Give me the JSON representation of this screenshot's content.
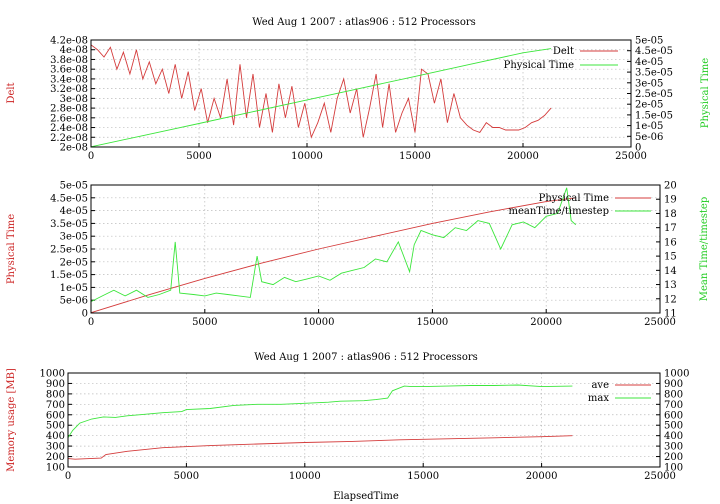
{
  "chart_data": [
    {
      "type": "line",
      "title": "Wed Aug 1 2007 : atlas906 : 512 Processors",
      "xlabel": "",
      "ylabel": "Delt",
      "y2label": "Physical Time",
      "xlim": [
        0,
        25000
      ],
      "ylim": [
        2e-08,
        4.2e-08
      ],
      "y2lim": [
        0,
        5e-05
      ],
      "xticks": [
        "0",
        "5000",
        "10000",
        "15000",
        "20000",
        "25000"
      ],
      "yticks": [
        "2e-08",
        "2.2e-08",
        "2.4e-08",
        "2.6e-08",
        "2.8e-08",
        "3e-08",
        "3.2e-08",
        "3.4e-08",
        "3.6e-08",
        "3.8e-08",
        "4e-08",
        "4.2e-08"
      ],
      "y2ticks": [
        "0",
        "5e-06",
        "1e-05",
        "1.5e-05",
        "2e-05",
        "2.5e-05",
        "3e-05",
        "3.5e-05",
        "4e-05",
        "4.5e-05",
        "5e-05"
      ],
      "grid": true,
      "legend_position": "top-right",
      "colors": {
        "red": "#d43c3c",
        "green": "#3ce63c"
      },
      "series": [
        {
          "name": "Delt",
          "axis": "y1",
          "color": "#d43c3c",
          "x": [
            0,
            300,
            600,
            900,
            1200,
            1500,
            1800,
            2100,
            2400,
            2700,
            3000,
            3300,
            3600,
            3900,
            4200,
            4500,
            4800,
            5100,
            5400,
            5700,
            6000,
            6300,
            6600,
            6900,
            7200,
            7500,
            7800,
            8100,
            8400,
            8700,
            9000,
            9300,
            9600,
            9900,
            10200,
            10500,
            10800,
            11100,
            11400,
            11700,
            12000,
            12300,
            12600,
            12900,
            13200,
            13500,
            13800,
            14100,
            14400,
            14700,
            15000,
            15300,
            15600,
            15900,
            16200,
            16500,
            16800,
            17100,
            17400,
            17700,
            18000,
            18300,
            18600,
            18900,
            19200,
            19500,
            19800,
            20100,
            20400,
            20700,
            21000,
            21300
          ],
          "y": [
            4.1e-08,
            4e-08,
            3.85e-08,
            4.05e-08,
            3.6e-08,
            3.95e-08,
            3.5e-08,
            4e-08,
            3.4e-08,
            3.75e-08,
            3.3e-08,
            3.6e-08,
            3.1e-08,
            3.7e-08,
            3e-08,
            3.55e-08,
            2.75e-08,
            3.2e-08,
            2.5e-08,
            3e-08,
            2.6e-08,
            3.4e-08,
            2.45e-08,
            3.7e-08,
            2.6e-08,
            3.5e-08,
            2.4e-08,
            3.1e-08,
            2.3e-08,
            3.3e-08,
            2.6e-08,
            3.25e-08,
            2.4e-08,
            2.9e-08,
            2.2e-08,
            2.5e-08,
            2.9e-08,
            2.3e-08,
            3e-08,
            3.4e-08,
            2.7e-08,
            3.2e-08,
            2.2e-08,
            2.8e-08,
            3.5e-08,
            2.4e-08,
            3.3e-08,
            2.3e-08,
            2.7e-08,
            3e-08,
            2.3e-08,
            3.6e-08,
            3.5e-08,
            2.9e-08,
            3.4e-08,
            2.5e-08,
            3.1e-08,
            2.6e-08,
            2.45e-08,
            2.35e-08,
            2.3e-08,
            2.5e-08,
            2.4e-08,
            2.4e-08,
            2.35e-08,
            2.35e-08,
            2.35e-08,
            2.4e-08,
            2.5e-08,
            2.55e-08,
            2.65e-08,
            2.8e-08
          ]
        },
        {
          "name": "Physical Time",
          "axis": "y2",
          "color": "#3ce63c",
          "x": [
            0,
            2500,
            5000,
            7500,
            10000,
            12500,
            15000,
            17500,
            20000,
            21300
          ],
          "y": [
            1e-07,
            5.5e-06,
            1.1e-05,
            1.65e-05,
            2.2e-05,
            2.75e-05,
            3.3e-05,
            3.85e-05,
            4.4e-05,
            4.6e-05
          ]
        }
      ]
    },
    {
      "type": "line",
      "title": "",
      "xlabel": "",
      "ylabel": "Physical Time",
      "y2label": "Mean Time/timestep",
      "xlim": [
        0,
        25000
      ],
      "ylim": [
        0,
        5e-05
      ],
      "y2lim": [
        11,
        20
      ],
      "xticks": [
        "0",
        "5000",
        "10000",
        "15000",
        "20000",
        "25000"
      ],
      "yticks": [
        "0",
        "5e-06",
        "1e-05",
        "1.5e-05",
        "2e-05",
        "2.5e-05",
        "3e-05",
        "3.5e-05",
        "4e-05",
        "4.5e-05",
        "5e-05"
      ],
      "y2ticks": [
        "11",
        "12",
        "13",
        "14",
        "15",
        "16",
        "17",
        "18",
        "19",
        "20"
      ],
      "grid": true,
      "legend_position": "top-right",
      "series": [
        {
          "name": "Physical Time",
          "axis": "y1",
          "color": "#d43c3c",
          "x": [
            0,
            2500,
            5000,
            7500,
            10000,
            12500,
            15000,
            17500,
            20000,
            21300
          ],
          "y": [
            1e-07,
            7e-06,
            1.35e-05,
            1.95e-05,
            2.5e-05,
            3e-05,
            3.5e-05,
            3.95e-05,
            4.35e-05,
            4.5e-05
          ]
        },
        {
          "name": "meanTime/timestep",
          "axis": "y2",
          "color": "#3ce63c",
          "x": [
            0,
            500,
            1000,
            1500,
            2000,
            2500,
            3000,
            3500,
            3700,
            3900,
            4500,
            5000,
            5500,
            6000,
            6500,
            7000,
            7300,
            7500,
            8000,
            8500,
            9000,
            9500,
            10000,
            10500,
            11000,
            11500,
            12000,
            12500,
            13000,
            13500,
            14000,
            14200,
            14500,
            15000,
            15500,
            16000,
            16500,
            17000,
            17500,
            18000,
            18500,
            19000,
            19500,
            20000,
            20500,
            20900,
            21100,
            21300
          ],
          "y": [
            11.8,
            12.2,
            12.6,
            12.2,
            12.6,
            12.1,
            12.3,
            12.6,
            16.0,
            12.4,
            12.3,
            12.2,
            12.4,
            12.3,
            12.2,
            12.1,
            15.0,
            13.2,
            13.0,
            13.5,
            13.2,
            13.4,
            13.6,
            13.3,
            13.8,
            14.0,
            14.2,
            14.8,
            14.6,
            16.0,
            13.9,
            15.8,
            16.8,
            16.5,
            16.3,
            17.0,
            16.8,
            17.5,
            17.3,
            15.5,
            17.2,
            17.4,
            17.0,
            17.8,
            18.0,
            19.8,
            17.5,
            17.2
          ]
        }
      ]
    },
    {
      "type": "line",
      "title": "Wed Aug 1 2007 : atlas906 : 512 Processors",
      "xlabel": "ElapsedTime",
      "ylabel": "Memory usage [MB]",
      "y2label": "",
      "xlim": [
        0,
        25000
      ],
      "ylim": [
        100,
        1000
      ],
      "y2lim": [
        100,
        1000
      ],
      "xticks": [
        "0",
        "5000",
        "10000",
        "15000",
        "20000",
        "25000"
      ],
      "yticks": [
        "100",
        "200",
        "300",
        "400",
        "500",
        "600",
        "700",
        "800",
        "900",
        "1000"
      ],
      "y2ticks": [
        "100",
        "200",
        "300",
        "400",
        "500",
        "600",
        "700",
        "800",
        "900",
        "1000"
      ],
      "grid": true,
      "legend_position": "top-right",
      "series": [
        {
          "name": "ave",
          "axis": "y1",
          "color": "#d43c3c",
          "x": [
            0,
            300,
            1400,
            1600,
            2500,
            4000,
            6000,
            8000,
            10000,
            12000,
            14000,
            16000,
            18000,
            20000,
            21300
          ],
          "y": [
            180,
            175,
            185,
            220,
            250,
            285,
            305,
            320,
            335,
            345,
            360,
            370,
            380,
            390,
            400
          ]
        },
        {
          "name": "max",
          "axis": "y2",
          "color": "#3ce63c",
          "x": [
            0,
            200,
            500,
            1000,
            1500,
            2000,
            2500,
            3000,
            4000,
            4800,
            5000,
            6000,
            7000,
            8000,
            9000,
            10000,
            11000,
            11500,
            12500,
            13000,
            13500,
            13700,
            14200,
            14500,
            15000,
            16000,
            17000,
            18000,
            19000,
            20000,
            21300
          ],
          "y": [
            380,
            450,
            520,
            560,
            580,
            575,
            590,
            600,
            620,
            630,
            650,
            660,
            690,
            700,
            700,
            710,
            720,
            730,
            735,
            745,
            760,
            830,
            875,
            870,
            870,
            875,
            880,
            880,
            885,
            870,
            875
          ]
        }
      ]
    }
  ]
}
